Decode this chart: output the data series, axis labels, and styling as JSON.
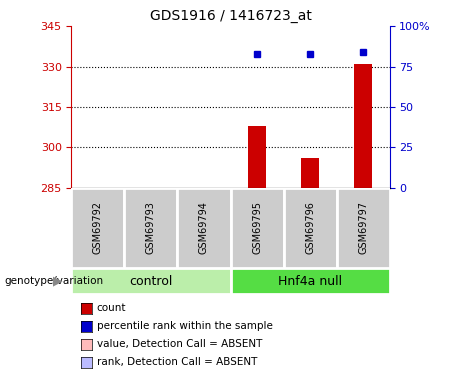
{
  "title": "GDS1916 / 1416723_at",
  "samples": [
    "GSM69792",
    "GSM69793",
    "GSM69794",
    "GSM69795",
    "GSM69796",
    "GSM69797"
  ],
  "bar_values": [
    null,
    null,
    null,
    308.0,
    296.0,
    331.0
  ],
  "bar_color": "#CC0000",
  "dot_percentile_values": [
    null,
    null,
    null,
    83,
    83,
    84
  ],
  "dot_color": "#0000CC",
  "ylim_left": [
    285,
    345
  ],
  "ylim_right": [
    0,
    100
  ],
  "yticks_left": [
    285,
    300,
    315,
    330,
    345
  ],
  "yticks_right": [
    0,
    25,
    50,
    75,
    100
  ],
  "ytick_labels_right": [
    "0",
    "25",
    "50",
    "75",
    "100%"
  ],
  "left_axis_color": "#CC0000",
  "right_axis_color": "#0000CC",
  "hlines": [
    300,
    315,
    330
  ],
  "control_color": "#bbeeaa",
  "hnf4a_color": "#55dd44",
  "sample_box_color": "#cccccc",
  "legend_items": [
    {
      "label": "count",
      "color": "#CC0000"
    },
    {
      "label": "percentile rank within the sample",
      "color": "#0000CC"
    },
    {
      "label": "value, Detection Call = ABSENT",
      "color": "#ffbbbb"
    },
    {
      "label": "rank, Detection Call = ABSENT",
      "color": "#bbbbff"
    }
  ],
  "genotype_label": "genotype/variation",
  "control_label": "control",
  "hnf4a_label": "Hnf4a null"
}
